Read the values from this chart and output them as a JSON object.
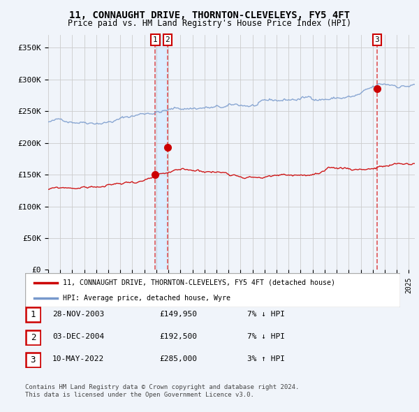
{
  "title": "11, CONNAUGHT DRIVE, THORNTON-CLEVELEYS, FY5 4FT",
  "subtitle": "Price paid vs. HM Land Registry's House Price Index (HPI)",
  "ylabel_ticks": [
    "£0",
    "£50K",
    "£100K",
    "£150K",
    "£200K",
    "£250K",
    "£300K",
    "£350K"
  ],
  "ytick_values": [
    0,
    50000,
    100000,
    150000,
    200000,
    250000,
    300000,
    350000
  ],
  "ylim": [
    0,
    370000
  ],
  "xlim_start": 1995.0,
  "xlim_end": 2025.5,
  "sale1_date": 2003.91,
  "sale1_price": 149950,
  "sale1_label": "1",
  "sale2_date": 2004.92,
  "sale2_price": 192500,
  "sale2_label": "2",
  "sale3_date": 2022.36,
  "sale3_price": 285000,
  "sale3_label": "3",
  "red_line_color": "#cc0000",
  "blue_line_color": "#7799cc",
  "vline_color": "#dd4444",
  "shade_color": "#ddeeff",
  "background_color": "#f0f4fa",
  "grid_color": "#cccccc",
  "legend_line1": "11, CONNAUGHT DRIVE, THORNTON-CLEVELEYS, FY5 4FT (detached house)",
  "legend_line2": "HPI: Average price, detached house, Wyre",
  "table_rows": [
    {
      "num": "1",
      "date": "28-NOV-2003",
      "price": "£149,950",
      "change": "7% ↓ HPI"
    },
    {
      "num": "2",
      "date": "03-DEC-2004",
      "price": "£192,500",
      "change": "7% ↓ HPI"
    },
    {
      "num": "3",
      "date": "10-MAY-2022",
      "price": "£285,000",
      "change": "3% ↑ HPI"
    }
  ],
  "footnote1": "Contains HM Land Registry data © Crown copyright and database right 2024.",
  "footnote2": "This data is licensed under the Open Government Licence v3.0."
}
